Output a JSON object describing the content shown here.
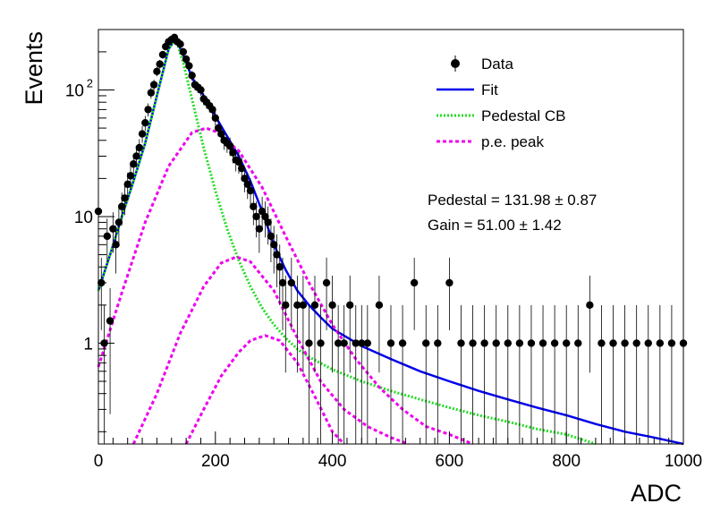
{
  "chart_data": {
    "type": "scatter",
    "xlabel": "ADC",
    "ylabel": "Events",
    "xlim": [
      0,
      1000
    ],
    "ylim": [
      0.16,
      300
    ],
    "yscale": "log",
    "x_ticks": [
      0,
      200,
      400,
      600,
      800,
      1000
    ],
    "y_ticks": [
      {
        "value": 1,
        "label": "1"
      },
      {
        "value": 10,
        "label": "10"
      },
      {
        "value": 100,
        "label": "10",
        "sup": "2"
      }
    ],
    "legend": {
      "position": "top-right",
      "entries": [
        {
          "label": "Data",
          "style": "marker",
          "color": "#000000"
        },
        {
          "label": "Fit",
          "style": "line",
          "color": "#0000ee"
        },
        {
          "label": "Pedestal CB",
          "style": "dotted",
          "color": "#22dd22"
        },
        {
          "label": "p.e. peak",
          "style": "dashed",
          "color": "#ee00ee"
        }
      ]
    },
    "annotations": [
      {
        "text": "Pedestal = 131.98 ± 0.87"
      },
      {
        "text": "Gain = 51.00 ± 1.42"
      }
    ],
    "series": [
      {
        "name": "Data",
        "style": "marker",
        "color": "#000000",
        "x": [
          0,
          5,
          10,
          15,
          20,
          25,
          30,
          35,
          40,
          45,
          50,
          55,
          60,
          65,
          70,
          75,
          80,
          85,
          90,
          95,
          100,
          105,
          110,
          115,
          120,
          125,
          130,
          135,
          140,
          145,
          150,
          155,
          160,
          165,
          170,
          175,
          180,
          185,
          190,
          195,
          200,
          205,
          210,
          215,
          220,
          225,
          230,
          235,
          240,
          245,
          250,
          255,
          260,
          265,
          270,
          275,
          280,
          285,
          290,
          295,
          300,
          305,
          310,
          315,
          320,
          330,
          340,
          350,
          360,
          370,
          380,
          390,
          400,
          410,
          420,
          430,
          440,
          450,
          460,
          480,
          500,
          520,
          540,
          560,
          580,
          600,
          620,
          640,
          660,
          680,
          700,
          720,
          740,
          760,
          780,
          800,
          820,
          840,
          860,
          880,
          900,
          920,
          940,
          960,
          980,
          1000
        ],
        "y": [
          11,
          3,
          1,
          7,
          1.5,
          8,
          6,
          9,
          12,
          14,
          18,
          21,
          26,
          30,
          35,
          45,
          55,
          70,
          95,
          110,
          140,
          160,
          190,
          220,
          240,
          250,
          260,
          240,
          230,
          200,
          175,
          155,
          130,
          110,
          105,
          100,
          85,
          80,
          75,
          70,
          60,
          50,
          45,
          40,
          38,
          36,
          32,
          28,
          27,
          24,
          20,
          18,
          16,
          12,
          10,
          8,
          11,
          10,
          9,
          7,
          6,
          5,
          4,
          3,
          2,
          3,
          2,
          2,
          1,
          2,
          1,
          3,
          2,
          1,
          1,
          2,
          1,
          1,
          1,
          2,
          1,
          1,
          3,
          1,
          1,
          3,
          1,
          1,
          1,
          1,
          1,
          1,
          1,
          1,
          1,
          1,
          1,
          2,
          1,
          1,
          1,
          1,
          1,
          1,
          1,
          1
        ]
      },
      {
        "name": "Fit",
        "style": "line",
        "color": "#0000ee",
        "x": [
          0,
          20,
          40,
          60,
          80,
          100,
          120,
          132,
          145,
          160,
          180,
          200,
          220,
          240,
          260,
          280,
          300,
          320,
          340,
          360,
          380,
          400,
          450,
          500,
          550,
          600,
          650,
          700,
          750,
          800,
          850,
          900,
          950,
          1000
        ],
        "y": [
          2.6,
          5,
          10,
          19,
          38,
          90,
          210,
          255,
          190,
          125,
          90,
          62,
          43,
          30,
          19,
          11,
          6,
          3.8,
          2.6,
          2,
          1.6,
          1.3,
          0.95,
          0.75,
          0.6,
          0.5,
          0.42,
          0.36,
          0.31,
          0.27,
          0.23,
          0.2,
          0.18,
          0.16
        ]
      },
      {
        "name": "Pedestal CB",
        "style": "dotted",
        "color": "#22dd22",
        "x": [
          0,
          20,
          40,
          60,
          80,
          100,
          120,
          132,
          145,
          160,
          180,
          200,
          220,
          240,
          260,
          280,
          300,
          320,
          340,
          360,
          400,
          450,
          500,
          550,
          600,
          650,
          700,
          750,
          800,
          850
        ],
        "y": [
          2.6,
          5,
          10,
          19,
          38,
          90,
          210,
          255,
          165,
          85,
          35,
          16,
          8,
          4.5,
          2.8,
          1.9,
          1.4,
          1.1,
          0.9,
          0.78,
          0.62,
          0.5,
          0.42,
          0.36,
          0.31,
          0.27,
          0.24,
          0.21,
          0.19,
          0.16
        ]
      },
      {
        "name": "p.e. peak 1",
        "style": "dashed",
        "color": "#ee00ee",
        "x": [
          0,
          40,
          80,
          120,
          160,
          184,
          200,
          240,
          280,
          320,
          360,
          400,
          440,
          480,
          520,
          560,
          600,
          640
        ],
        "y": [
          0.65,
          2.5,
          9,
          25,
          46,
          50,
          47,
          33,
          17,
          7,
          3,
          1.4,
          0.75,
          0.45,
          0.3,
          0.22,
          0.19,
          0.16
        ]
      },
      {
        "name": "p.e. peak 2",
        "style": "dashed",
        "color": "#ee00ee",
        "x": [
          60,
          100,
          140,
          180,
          210,
          236,
          260,
          300,
          340,
          380,
          420,
          460,
          500,
          530
        ],
        "y": [
          0.16,
          0.4,
          1.2,
          2.8,
          4.3,
          4.8,
          4.4,
          2.6,
          1.1,
          0.5,
          0.3,
          0.22,
          0.18,
          0.16
        ]
      },
      {
        "name": "p.e. peak 3",
        "style": "dashed",
        "color": "#ee00ee",
        "x": [
          150,
          180,
          210,
          240,
          260,
          285,
          310,
          340,
          370,
          400,
          420
        ],
        "y": [
          0.16,
          0.3,
          0.55,
          0.85,
          1.05,
          1.15,
          1.05,
          0.7,
          0.38,
          0.2,
          0.16
        ]
      }
    ]
  }
}
